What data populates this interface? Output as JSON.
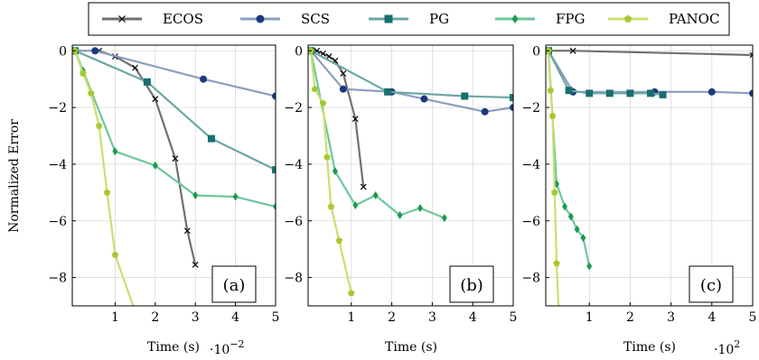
{
  "legend": [
    {
      "name": "ECOS",
      "color": "#707070",
      "marker": "x"
    },
    {
      "name": "SCS",
      "color": "#8a9ec0",
      "marker": "circle"
    },
    {
      "name": "PG",
      "color": "#6aa8a4",
      "marker": "square"
    },
    {
      "name": "FPG",
      "color": "#6cc89a",
      "marker": "diamond"
    },
    {
      "name": "PANOC",
      "color": "#c8e070",
      "marker": "pentagon"
    }
  ],
  "marker_colors": {
    "ECOS": "#000000",
    "SCS": "#1b3a7c",
    "PG": "#1a6e70",
    "FPG": "#1a9a50",
    "PANOC": "#a8c832"
  },
  "chart_data": [
    {
      "type": "line",
      "panel_label": "(a)",
      "xlabel": "Time (s)",
      "ylabel": "Normalized Error",
      "x_scale_label_base": "·10",
      "x_scale_label_exp": "−2",
      "xlim": [
        0,
        5
      ],
      "ylim": [
        -9,
        0.2
      ],
      "xticks": [
        1,
        2,
        3,
        4,
        5
      ],
      "yticks": [
        0,
        -2,
        -4,
        -6,
        -8
      ],
      "ytick_labels": [
        "0",
        "−2",
        "−4",
        "−6",
        "−8"
      ],
      "grid": true,
      "series": [
        {
          "name": "ECOS",
          "x": [
            0.6,
            1.0,
            1.5,
            2.0,
            2.5,
            2.8,
            3.0
          ],
          "y": [
            0,
            -0.2,
            -0.6,
            -1.7,
            -3.8,
            -6.35,
            -7.55
          ]
        },
        {
          "name": "SCS",
          "x": [
            0,
            0.5,
            3.2,
            5.0
          ],
          "y": [
            0,
            0,
            -1.0,
            -1.6
          ]
        },
        {
          "name": "PG",
          "x": [
            0,
            1.8,
            3.4,
            5.0
          ],
          "y": [
            0,
            -1.1,
            -3.1,
            -4.2
          ]
        },
        {
          "name": "FPG",
          "x": [
            0,
            0.2,
            1.0,
            2.0,
            3.0,
            4.0,
            5.0
          ],
          "y": [
            0,
            -0.7,
            -3.55,
            -4.05,
            -5.1,
            -5.15,
            -5.5
          ]
        },
        {
          "name": "PANOC",
          "x": [
            0,
            0.2,
            0.4,
            0.6,
            0.8,
            1.0,
            1.5
          ],
          "y": [
            0,
            -0.8,
            -1.5,
            -2.65,
            -5.0,
            -7.2,
            -9.2
          ]
        }
      ]
    },
    {
      "type": "line",
      "panel_label": "(b)",
      "xlabel": "Time (s)",
      "xlim": [
        0,
        5
      ],
      "ylim": [
        -9,
        0.2
      ],
      "xticks": [
        1,
        2,
        3,
        4,
        5
      ],
      "yticks": [
        0,
        -2,
        -4,
        -6,
        -8
      ],
      "ytick_labels": [
        "0",
        "−2",
        "−4",
        "−6",
        "−8"
      ],
      "grid": true,
      "series": [
        {
          "name": "ECOS",
          "x": [
            0,
            0.15,
            0.3,
            0.45,
            0.6,
            0.8,
            1.1,
            1.3
          ],
          "y": [
            0,
            0,
            -0.1,
            -0.2,
            -0.35,
            -0.8,
            -2.4,
            -4.8
          ]
        },
        {
          "name": "SCS",
          "x": [
            0,
            0.8,
            2.0,
            2.8,
            4.3,
            5.0
          ],
          "y": [
            0,
            -1.35,
            -1.45,
            -1.7,
            -2.15,
            -2.0
          ]
        },
        {
          "name": "PG",
          "x": [
            0,
            1.9,
            3.8,
            5.0
          ],
          "y": [
            0,
            -1.45,
            -1.6,
            -1.65
          ]
        },
        {
          "name": "FPG",
          "x": [
            0,
            0.6,
            1.1,
            1.6,
            2.2,
            2.7,
            3.3
          ],
          "y": [
            0,
            -4.25,
            -5.45,
            -5.1,
            -5.8,
            -5.55,
            -5.9
          ]
        },
        {
          "name": "PANOC",
          "x": [
            0,
            0.1,
            0.3,
            0.4,
            0.5,
            0.7,
            1.0
          ],
          "y": [
            0,
            -1.35,
            -1.85,
            -3.75,
            -5.5,
            -6.7,
            -8.55
          ]
        }
      ]
    },
    {
      "type": "line",
      "panel_label": "(c)",
      "xlabel": "Time (s)",
      "x_scale_label_base": "·10",
      "x_scale_label_exp": "2",
      "xlim": [
        0,
        5
      ],
      "ylim": [
        -9,
        0.2
      ],
      "xticks": [
        1,
        2,
        3,
        4,
        5
      ],
      "yticks": [
        0,
        -2,
        -4,
        -6,
        -8
      ],
      "ytick_labels": [
        "0",
        "−2",
        "−4",
        "−6",
        "−8"
      ],
      "grid": true,
      "series": [
        {
          "name": "ECOS",
          "x": [
            0,
            0.6,
            5.0
          ],
          "y": [
            0,
            0,
            -0.15
          ]
        },
        {
          "name": "SCS",
          "x": [
            0,
            0.6,
            2.6,
            4.0,
            5.0
          ],
          "y": [
            0,
            -1.45,
            -1.45,
            -1.45,
            -1.5
          ]
        },
        {
          "name": "PG",
          "x": [
            0,
            0.5,
            1.0,
            1.5,
            2.0,
            2.5,
            2.8
          ],
          "y": [
            0,
            -1.4,
            -1.5,
            -1.5,
            -1.5,
            -1.5,
            -1.55
          ]
        },
        {
          "name": "FPG",
          "x": [
            0,
            0.2,
            0.4,
            0.55,
            0.7,
            0.85,
            1.0
          ],
          "y": [
            0,
            -4.7,
            -5.5,
            -5.85,
            -6.3,
            -6.6,
            -7.6
          ]
        },
        {
          "name": "PANOC",
          "x": [
            0,
            0.05,
            0.1,
            0.15,
            0.2,
            0.25
          ],
          "y": [
            0,
            -1.4,
            -2.3,
            -5.0,
            -7.5,
            -9.2
          ]
        }
      ]
    }
  ]
}
